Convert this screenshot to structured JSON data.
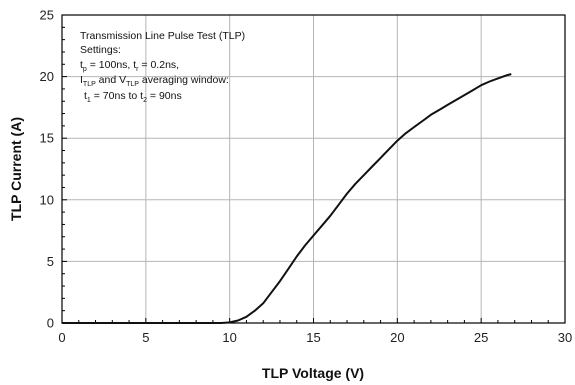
{
  "chart_data": {
    "type": "line",
    "xlabel": "TLP Voltage (V)",
    "ylabel": "TLP Current (A)",
    "xlim": [
      0,
      30
    ],
    "ylim": [
      0,
      25
    ],
    "xticks": [
      0,
      5,
      10,
      15,
      20,
      25,
      30
    ],
    "yticks": [
      0,
      5,
      10,
      15,
      20,
      25
    ],
    "grid": true,
    "annotation": {
      "line1": "Transmission Line Pulse Test (TLP)",
      "line2": "Settings:",
      "line3": {
        "a": "t",
        "a_sub": "p",
        "b": " = 100ns, t",
        "b_sub": "r",
        "c": " = 0.2ns,"
      },
      "line4": {
        "a": "I",
        "a_sub": "TLP",
        "b": " and V",
        "b_sub": "TLP",
        "c": " averaging window:"
      },
      "line5": {
        "a": "t",
        "a_sub": "1",
        "b": " = 70ns to t",
        "b_sub": "2",
        "c": " = 90ns"
      }
    },
    "series": [
      {
        "values": [
          [
            0,
            0
          ],
          [
            9.5,
            0
          ],
          [
            10.0,
            0.05
          ],
          [
            10.5,
            0.2
          ],
          [
            11.0,
            0.5
          ],
          [
            11.5,
            1.0
          ],
          [
            12.0,
            1.6
          ],
          [
            12.5,
            2.5
          ],
          [
            13.0,
            3.4
          ],
          [
            13.5,
            4.4
          ],
          [
            14.0,
            5.4
          ],
          [
            14.5,
            6.3
          ],
          [
            15.0,
            7.1
          ],
          [
            15.5,
            7.9
          ],
          [
            16.0,
            8.7
          ],
          [
            16.5,
            9.6
          ],
          [
            17.0,
            10.5
          ],
          [
            17.5,
            11.3
          ],
          [
            18.0,
            12.0
          ],
          [
            18.5,
            12.7
          ],
          [
            19.0,
            13.4
          ],
          [
            19.5,
            14.1
          ],
          [
            20.0,
            14.8
          ],
          [
            20.5,
            15.4
          ],
          [
            21.0,
            15.9
          ],
          [
            21.5,
            16.4
          ],
          [
            22.0,
            16.9
          ],
          [
            22.5,
            17.3
          ],
          [
            23.0,
            17.7
          ],
          [
            23.5,
            18.1
          ],
          [
            24.0,
            18.5
          ],
          [
            24.5,
            18.9
          ],
          [
            25.0,
            19.3
          ],
          [
            25.5,
            19.6
          ],
          [
            26.0,
            19.85
          ],
          [
            26.5,
            20.1
          ],
          [
            26.8,
            20.2
          ]
        ]
      }
    ]
  }
}
